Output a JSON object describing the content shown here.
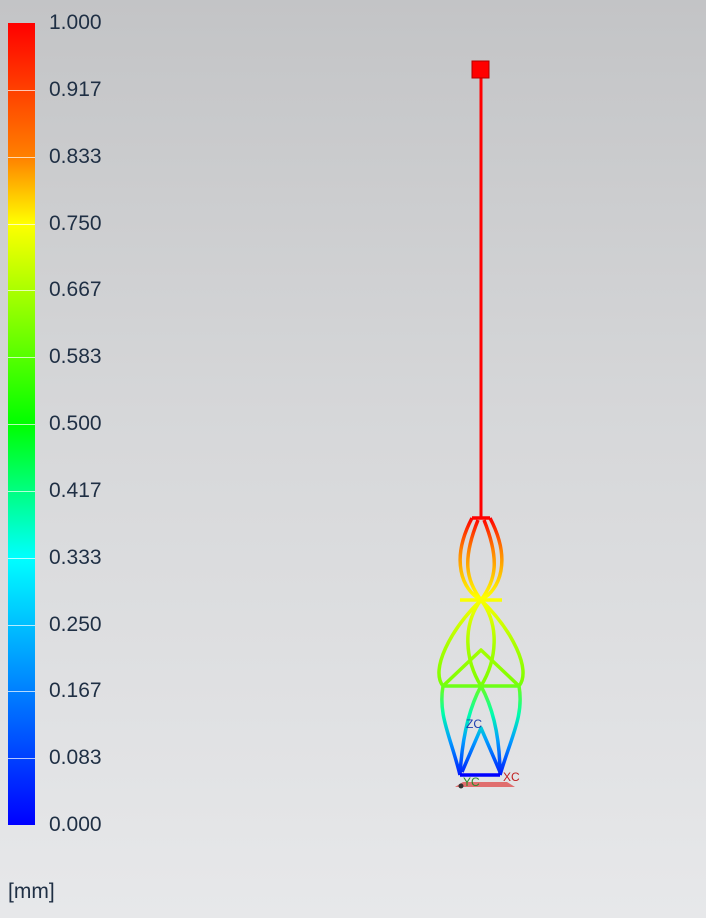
{
  "legend": {
    "ticks": [
      "1.000",
      "0.917",
      "0.833",
      "0.750",
      "0.667",
      "0.583",
      "0.500",
      "0.417",
      "0.333",
      "0.250",
      "0.167",
      "0.083",
      "0.000"
    ],
    "unit": "[mm]"
  },
  "axes": {
    "zc": "ZC",
    "yc": "YC",
    "xc": "XC"
  },
  "colors": {
    "max": "#ff0000",
    "mid": "#00ff00",
    "min": "#0000ff"
  }
}
